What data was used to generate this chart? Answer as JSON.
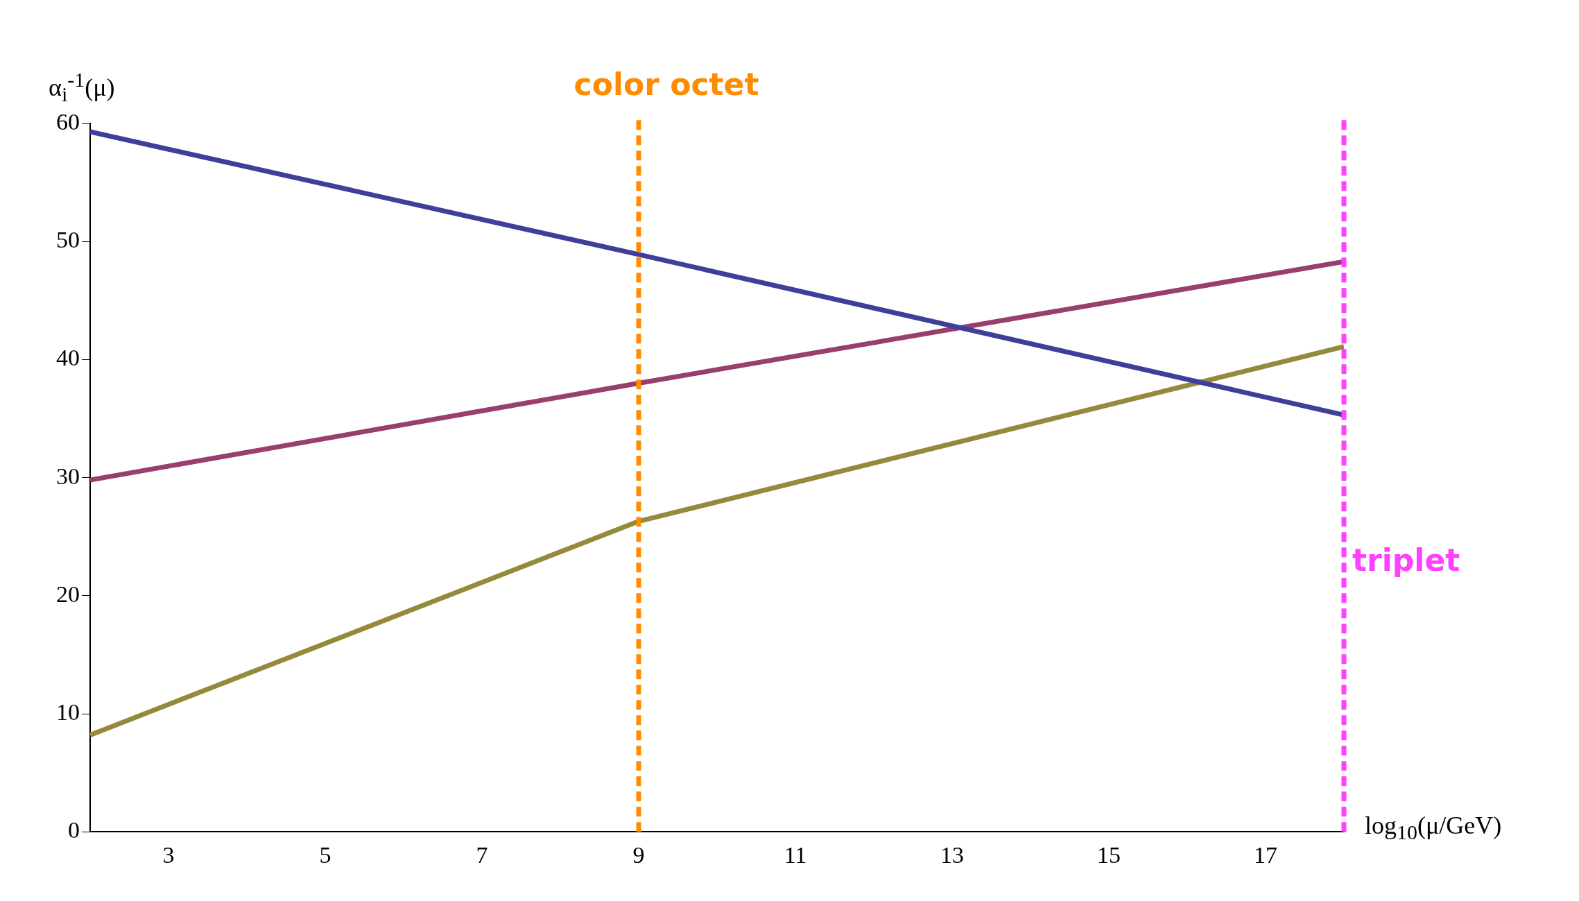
{
  "chart_data": {
    "type": "line",
    "xlabel": "log$_{10}$(μ/GeV)",
    "ylabel": "α$_{i}$$^{-1}$(μ)",
    "x": [
      2,
      9,
      18
    ],
    "series": [
      {
        "color": "#3f3f9a",
        "values": [
          59.3,
          48.9,
          35.3
        ]
      },
      {
        "color": "#993f6e",
        "values": [
          29.8,
          38.0,
          48.3
        ]
      },
      {
        "color": "#958a3c",
        "values": [
          8.2,
          26.3,
          41.1
        ]
      }
    ],
    "xlim": [
      2,
      18
    ],
    "xticks": [
      3,
      5,
      7,
      9,
      11,
      13,
      15,
      17
    ],
    "ylim": [
      0,
      60
    ],
    "yticks": [
      0,
      10,
      20,
      30,
      40,
      50,
      60
    ],
    "ref_lines": [
      {
        "axis": "x",
        "value": 9,
        "label": "color octet",
        "color": "#ff8c00",
        "line_style": "dashed"
      },
      {
        "axis": "x",
        "value": 18,
        "label": "triplet",
        "color": "#ff40ff",
        "line_style": "dashed"
      }
    ],
    "grid": false,
    "legend": false,
    "marker": "none",
    "line_style": "solid"
  }
}
